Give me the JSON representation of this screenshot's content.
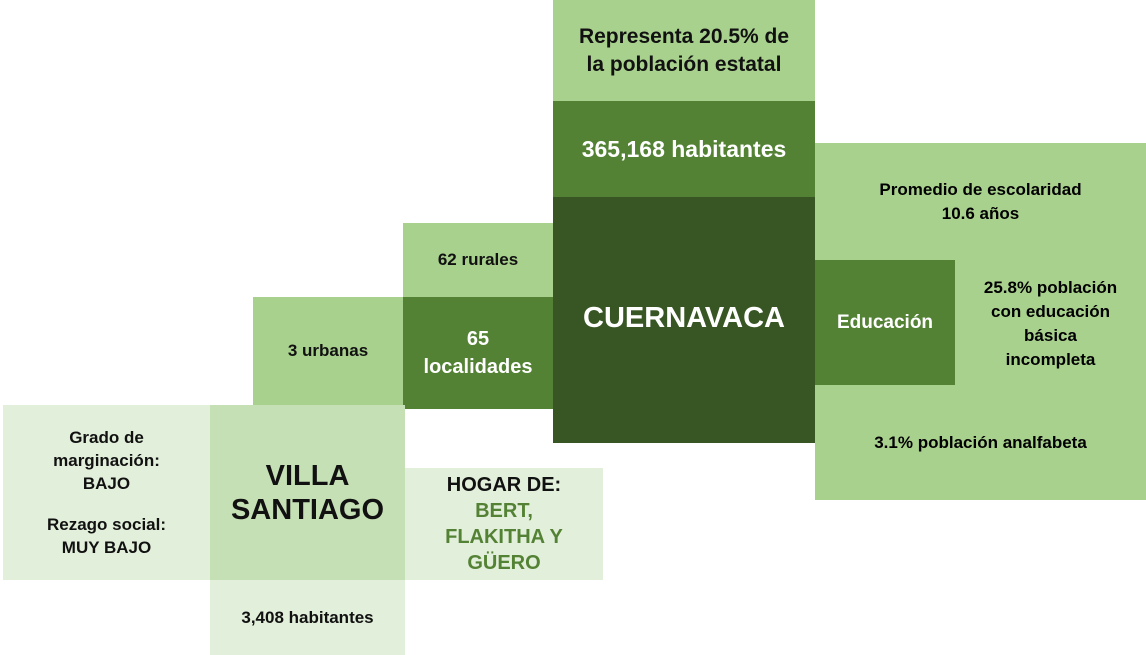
{
  "blocks": {
    "poblacion_estatal": [
      "Representa 20.5% de",
      "la población estatal"
    ],
    "habitantes": [
      "365,168 habitantes"
    ],
    "municipio": [
      "CUERNAVACA"
    ],
    "escolaridad": [
      "Promedio de escolaridad",
      "10.6 años"
    ],
    "educacion": [
      "Educación"
    ],
    "basica": [
      "25.8% población",
      "con educación",
      "básica",
      "incompleta"
    ],
    "analfabeta": [
      "3.1% población analfabeta"
    ],
    "rurales": [
      "62 rurales"
    ],
    "localidades": [
      "65",
      "localidades"
    ],
    "urbanas": [
      "3 urbanas"
    ],
    "marginacion": [
      "Grado de",
      "marginación:",
      "BAJO",
      "",
      "Rezago social:",
      "MUY BAJO"
    ],
    "colonia": [
      "VILLA",
      "SANTIAGO"
    ],
    "colonia_habitantes": [
      "3,408 habitantes"
    ],
    "hogar_titulo": [
      "HOGAR DE:"
    ],
    "hogar_nombres": [
      "BERT,",
      "FLAKITHA Y",
      "GÜERO"
    ]
  }
}
